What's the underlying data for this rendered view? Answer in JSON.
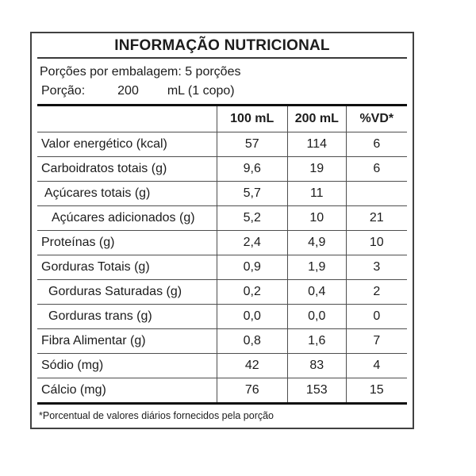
{
  "colors": {
    "background": "#ffffff",
    "outer_border": "#414141",
    "grid_line": "#4e4e4e",
    "thick_line": "#0f0f0f",
    "text": "#1c1c1c"
  },
  "label": {
    "title": "INFORMAÇÃO NUTRICIONAL",
    "servings_per_package": "Porções por embalagem: 5 porções",
    "serving_size": {
      "label": "Porção:",
      "amount": "200",
      "unit": "mL (1 copo)"
    },
    "column_headers": {
      "nutrient": "",
      "per_100ml": "100 mL",
      "per_200ml": "200 mL",
      "daily_value": "%VD*"
    },
    "rows": [
      {
        "label": "Valor energético (kcal)",
        "indent": 0,
        "per_100ml": "57",
        "per_200ml": "114",
        "daily_value": "6"
      },
      {
        "label": "Carboidratos totais (g)",
        "indent": 0,
        "per_100ml": "9,6",
        "per_200ml": "19",
        "daily_value": "6"
      },
      {
        "label": "Açúcares totais (g)",
        "indent": 1,
        "per_100ml": "5,7",
        "per_200ml": "11",
        "daily_value": ""
      },
      {
        "label": "Açúcares adicionados (g)",
        "indent": 3,
        "per_100ml": "5,2",
        "per_200ml": "10",
        "daily_value": "21"
      },
      {
        "label": "Proteínas (g)",
        "indent": 0,
        "per_100ml": "2,4",
        "per_200ml": "4,9",
        "daily_value": "10"
      },
      {
        "label": "Gorduras Totais (g)",
        "indent": 0,
        "per_100ml": "0,9",
        "per_200ml": "1,9",
        "daily_value": "3"
      },
      {
        "label": "Gorduras Saturadas (g)",
        "indent": 2,
        "per_100ml": "0,2",
        "per_200ml": "0,4",
        "daily_value": "2"
      },
      {
        "label": "Gorduras trans (g)",
        "indent": 2,
        "per_100ml": "0,0",
        "per_200ml": "0,0",
        "daily_value": "0"
      },
      {
        "label": "Fibra Alimentar (g)",
        "indent": 0,
        "per_100ml": "0,8",
        "per_200ml": "1,6",
        "daily_value": "7"
      },
      {
        "label": "Sódio (mg)",
        "indent": 0,
        "per_100ml": "42",
        "per_200ml": "83",
        "daily_value": "4"
      },
      {
        "label": "Cálcio (mg)",
        "indent": 0,
        "per_100ml": "76",
        "per_200ml": "153",
        "daily_value": "15"
      }
    ],
    "footnote": "*Porcentual de valores diários fornecidos pela porção"
  }
}
